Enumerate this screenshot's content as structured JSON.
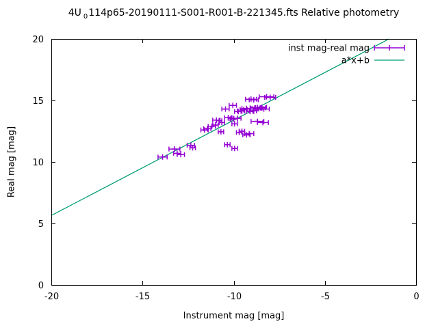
{
  "title": {
    "prefix": "4U",
    "sub": "0",
    "rest": "114p65-20190111-S001-R001-B-221345.fts Relative photometry"
  },
  "axes": {
    "xlabel": "Instrument mag [mag]",
    "ylabel": "Real mag [mag]",
    "xticks": [
      -20,
      -15,
      -10,
      -5,
      0
    ],
    "yticks": [
      0,
      5,
      10,
      15,
      20
    ]
  },
  "legend": [
    {
      "label": "inst mag-real mag",
      "style": "xerrorbars",
      "color": "#9400d3"
    },
    {
      "label": "a*x+b",
      "style": "line",
      "color": "#009e73"
    }
  ],
  "colors": {
    "points": "#9400d3",
    "fit_line": "#009e73",
    "axis": "#000000",
    "background": "#ffffff"
  },
  "chart_data": {
    "type": "scatter",
    "title": "4U 0114p65-20190111-S001-R001-B-221345.fts Relative photometry",
    "xlabel": "Instrument mag [mag]",
    "ylabel": "Real mag [mag]",
    "xlim": [
      -20,
      0
    ],
    "ylim": [
      0,
      20
    ],
    "grid": false,
    "legend_position": "top-right",
    "series": [
      {
        "name": "inst mag-real mag",
        "style": "xerrorbars",
        "color": "#9400d3",
        "points": [
          [
            -13.9,
            10.4,
            0.25
          ],
          [
            -13.25,
            11.05,
            0.3
          ],
          [
            -13.1,
            10.7,
            0.2
          ],
          [
            -12.9,
            10.6,
            0.2
          ],
          [
            -12.35,
            11.35,
            0.2
          ],
          [
            -12.25,
            11.15,
            0.15
          ],
          [
            -11.6,
            12.6,
            0.2
          ],
          [
            -11.45,
            12.7,
            0.2
          ],
          [
            -11.2,
            12.9,
            0.2
          ],
          [
            -11.0,
            13.0,
            0.15
          ],
          [
            -10.95,
            13.4,
            0.2
          ],
          [
            -10.8,
            13.35,
            0.15
          ],
          [
            -10.7,
            12.45,
            0.15
          ],
          [
            -10.65,
            13.2,
            0.15
          ],
          [
            -10.45,
            14.3,
            0.2
          ],
          [
            -10.35,
            11.4,
            0.15
          ],
          [
            -10.3,
            13.6,
            0.2
          ],
          [
            -10.15,
            13.55,
            0.15
          ],
          [
            -10.05,
            14.6,
            0.2
          ],
          [
            -10.0,
            13.5,
            0.2
          ],
          [
            -9.95,
            13.1,
            0.15
          ],
          [
            -9.95,
            11.1,
            0.15
          ],
          [
            -9.8,
            13.55,
            0.2
          ],
          [
            -9.75,
            14.1,
            0.2
          ],
          [
            -9.7,
            12.4,
            0.15
          ],
          [
            -9.6,
            14.15,
            0.2
          ],
          [
            -9.55,
            12.5,
            0.15
          ],
          [
            -9.45,
            14.25,
            0.2
          ],
          [
            -9.3,
            14.35,
            0.25
          ],
          [
            -9.3,
            12.2,
            0.2
          ],
          [
            -9.15,
            12.3,
            0.25
          ],
          [
            -9.1,
            14.1,
            0.2
          ],
          [
            -9.05,
            15.1,
            0.3
          ],
          [
            -8.95,
            14.15,
            0.2
          ],
          [
            -8.9,
            15.05,
            0.25
          ],
          [
            -8.8,
            14.4,
            0.3
          ],
          [
            -8.7,
            14.35,
            0.25
          ],
          [
            -8.7,
            13.3,
            0.35
          ],
          [
            -8.55,
            14.4,
            0.3
          ],
          [
            -8.45,
            14.45,
            0.25
          ],
          [
            -8.4,
            13.2,
            0.3
          ],
          [
            -8.35,
            14.3,
            0.3
          ],
          [
            -8.2,
            15.3,
            0.4
          ],
          [
            -8.0,
            15.25,
            0.3
          ]
        ]
      },
      {
        "name": "a*x+b",
        "style": "line",
        "color": "#009e73",
        "fit": {
          "a": 0.775,
          "b": 21.15
        },
        "x_range": [
          -20,
          -1.48
        ]
      }
    ]
  }
}
